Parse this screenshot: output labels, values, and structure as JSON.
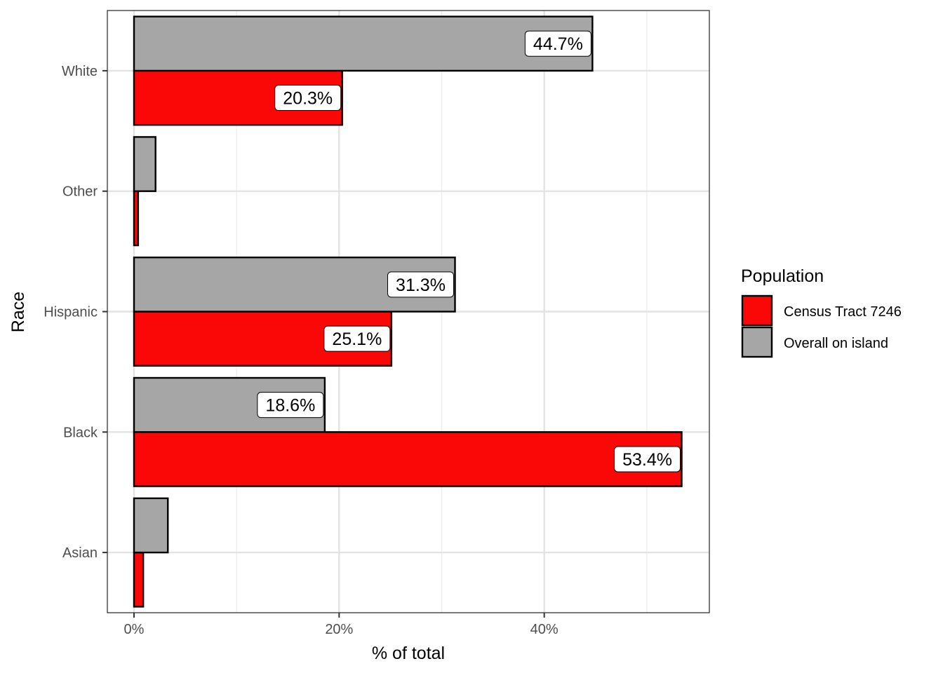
{
  "chart_data": {
    "type": "bar",
    "orientation": "horizontal",
    "title": "",
    "xlabel": "% of total",
    "ylabel": "Race",
    "categories": [
      "Asian",
      "Black",
      "Hispanic",
      "Other",
      "White"
    ],
    "xlim": [
      -2.6,
      56.1
    ],
    "x_ticks": [
      0,
      20,
      40
    ],
    "x_tick_labels": [
      "0%",
      "20%",
      "40%"
    ],
    "grid": true,
    "legend": {
      "title": "Population",
      "position": "right",
      "entries": [
        "Census Tract 7246",
        "Overall on island"
      ]
    },
    "series": [
      {
        "name": "Census Tract 7246",
        "color": "#fa0707",
        "values": [
          0.9,
          53.4,
          25.1,
          0.4,
          20.3
        ],
        "labels": [
          "",
          "53.4%",
          "25.1%",
          "",
          "20.3%"
        ]
      },
      {
        "name": "Overall on island",
        "color": "#a6a6a6",
        "values": [
          3.3,
          18.6,
          31.3,
          2.1,
          44.7
        ],
        "labels": [
          "",
          "18.6%",
          "31.3%",
          "",
          "44.7%"
        ]
      }
    ]
  }
}
